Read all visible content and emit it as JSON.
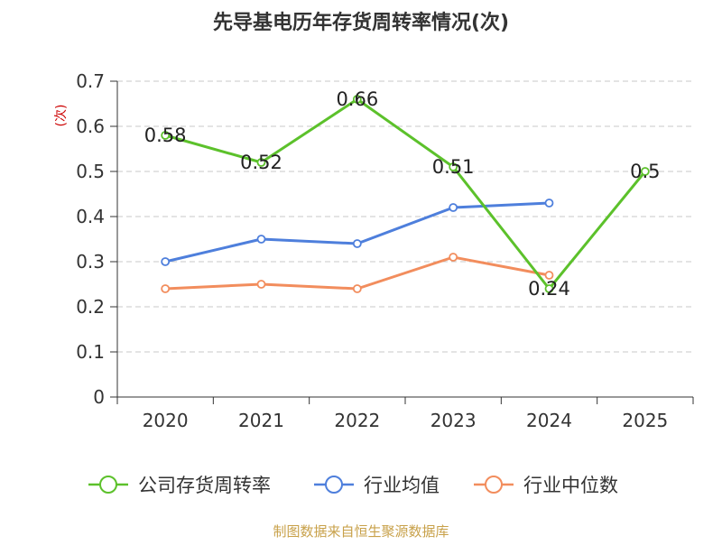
{
  "chart_data": {
    "type": "line",
    "title": "先导基电历年存货周转率情况(次)",
    "ylabel": "(次)",
    "xlabel": "",
    "categories": [
      "2020",
      "2021",
      "2022",
      "2023",
      "2024",
      "2025"
    ],
    "yticks": [
      "0",
      "0.1",
      "0.2",
      "0.3",
      "0.4",
      "0.5",
      "0.6",
      "0.7"
    ],
    "ylim": [
      0,
      0.7
    ],
    "grid": true,
    "legend_position": "bottom",
    "series": [
      {
        "name": "公司存货周转率",
        "color": "#5cc12b",
        "values": [
          0.58,
          0.52,
          0.66,
          0.51,
          0.24,
          0.5
        ],
        "labels": [
          "0.58",
          "0.52",
          "0.66",
          "0.51",
          "0.24",
          "0.5"
        ],
        "show_labels": true
      },
      {
        "name": "行业均值",
        "color": "#4e7fdc",
        "values": [
          0.3,
          0.35,
          0.34,
          0.42,
          0.43,
          null
        ],
        "show_labels": false
      },
      {
        "name": "行业中位数",
        "color": "#f28d5d",
        "values": [
          0.24,
          0.25,
          0.24,
          0.31,
          0.27,
          null
        ],
        "show_labels": false
      }
    ],
    "source": "制图数据来自恒生聚源数据库"
  }
}
